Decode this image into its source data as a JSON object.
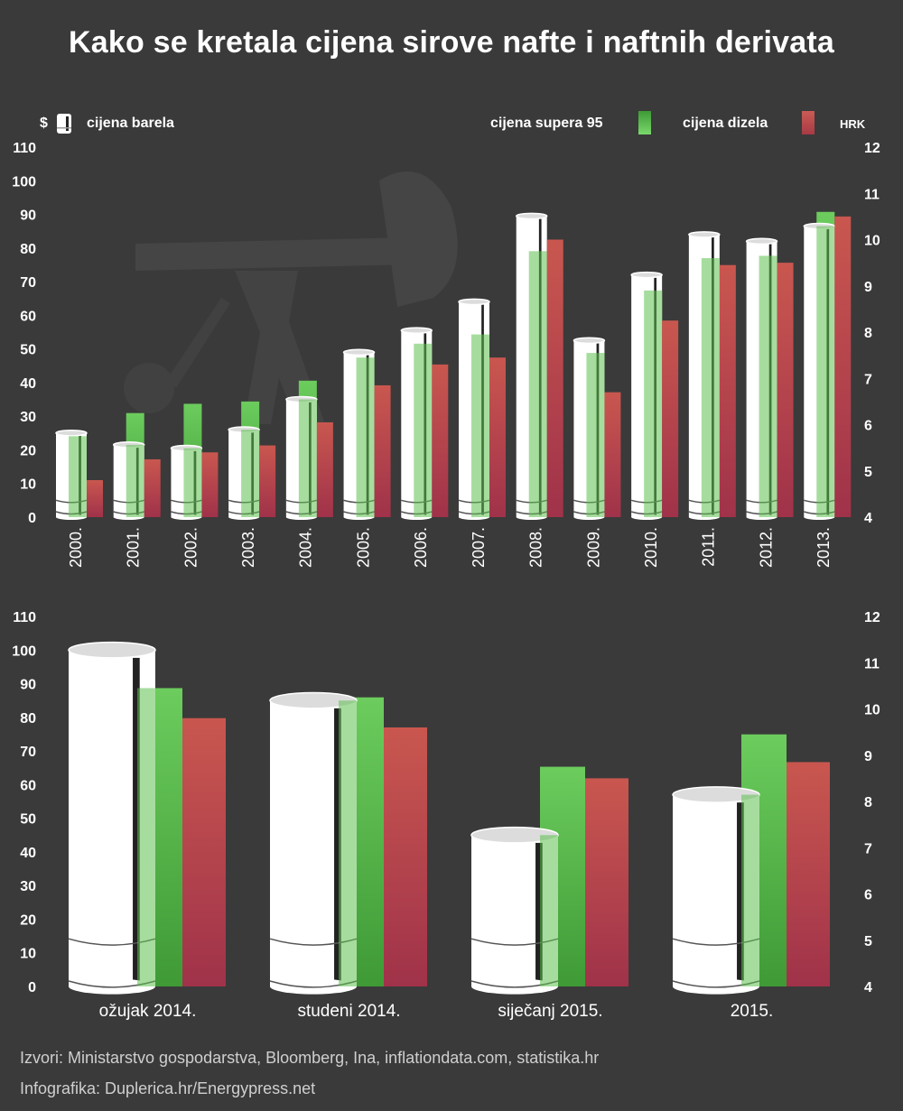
{
  "title": "Kako se kretala cijena sirove nafte i naftnih derivata",
  "legend": {
    "left_currency": "$",
    "barrel_label": "cijena barela",
    "super_label": "cijena supera 95",
    "diesel_label": "cijena dizela",
    "right_currency": "HRK"
  },
  "colors": {
    "background": "#3a3a3a",
    "super_green": "#5cc14f",
    "diesel_red": "#c24b4b",
    "barrel_white": "#ffffff"
  },
  "chart_data": [
    {
      "type": "bar",
      "categories": [
        "2000.",
        "2001.",
        "2002.",
        "2003.",
        "2004.",
        "2005.",
        "2006.",
        "2007.",
        "2008.",
        "2009.",
        "2010.",
        "2011.",
        "2012.",
        "2013."
      ],
      "left_axis": {
        "unit": "$",
        "ylim": [
          0,
          110
        ],
        "ticks": [
          0,
          10,
          20,
          30,
          40,
          50,
          60,
          70,
          80,
          90,
          100,
          110
        ]
      },
      "right_axis": {
        "unit": "HRK",
        "ylim": [
          4,
          12
        ],
        "ticks": [
          4,
          5,
          6,
          7,
          8,
          9,
          10,
          11,
          12
        ]
      },
      "series": [
        {
          "name": "cijena barela",
          "axis": "left",
          "values": [
            25,
            21.5,
            20.5,
            26,
            35,
            49,
            55.5,
            64,
            89.5,
            52.5,
            72,
            84,
            82,
            86.5
          ]
        },
        {
          "name": "cijena supera 95",
          "axis": "right",
          "values": [
            5.75,
            6.25,
            6.45,
            6.5,
            6.95,
            7.45,
            7.75,
            7.95,
            9.75,
            7.55,
            8.9,
            9.6,
            9.65,
            10.6
          ]
        },
        {
          "name": "cijena dizela",
          "axis": "right",
          "values": [
            4.8,
            5.25,
            5.4,
            5.55,
            6.05,
            6.85,
            7.3,
            7.45,
            10.0,
            6.7,
            8.25,
            9.45,
            9.5,
            10.5
          ]
        }
      ]
    },
    {
      "type": "bar",
      "categories": [
        "ožujak 2014.",
        "studeni 2014.",
        "siječanj 2015.",
        "2015."
      ],
      "left_axis": {
        "unit": "$",
        "ylim": [
          0,
          110
        ],
        "ticks": [
          0,
          10,
          20,
          30,
          40,
          50,
          60,
          70,
          80,
          90,
          100,
          110
        ]
      },
      "right_axis": {
        "unit": "HRK",
        "ylim": [
          4,
          12
        ],
        "ticks": [
          4,
          5,
          6,
          7,
          8,
          9,
          10,
          11,
          12
        ]
      },
      "series": [
        {
          "name": "cijena barela",
          "axis": "left",
          "values": [
            100,
            85,
            45,
            57
          ]
        },
        {
          "name": "cijena supera 95",
          "axis": "right",
          "values": [
            10.45,
            10.25,
            8.75,
            9.45
          ]
        },
        {
          "name": "cijena dizela",
          "axis": "right",
          "values": [
            9.8,
            9.6,
            8.5,
            8.85
          ]
        }
      ]
    }
  ],
  "sources": {
    "line1": "Izvori: Ministarstvo gospodarstva, Bloomberg, Ina, inflationdata.com, statistika.hr",
    "line2": "Infografika: Duplerica.hr/Energypress.net"
  }
}
